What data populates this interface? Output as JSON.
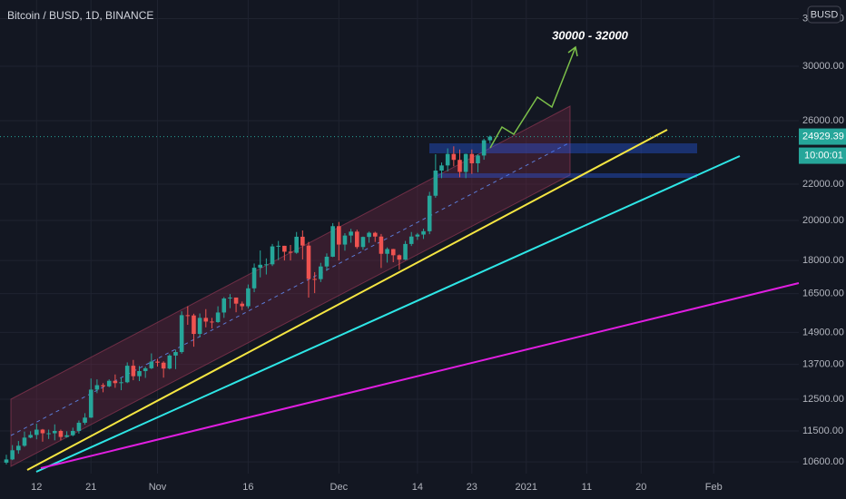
{
  "chart_data": {
    "type": "candlestick",
    "title": "Bitcoin / BUSD, 1D, BINANCE",
    "currency_badge": "BUSD",
    "annotation": "30000 - 32000",
    "last_price": 24929.39,
    "countdown": "10:00:01",
    "log_scale": true,
    "grid": true,
    "up_color": "#26a69a",
    "down_color": "#ef5350",
    "ylim": [
      10280,
      35700
    ],
    "yticks": [
      {
        "value": 10600,
        "label": "10600.00"
      },
      {
        "value": 11500,
        "label": "11500.00"
      },
      {
        "value": 12500,
        "label": "12500.00"
      },
      {
        "value": 13700,
        "label": "13700.00"
      },
      {
        "value": 14900,
        "label": "14900.00"
      },
      {
        "value": 16500,
        "label": "16500.00"
      },
      {
        "value": 18000,
        "label": "18000.00"
      },
      {
        "value": 20000,
        "label": "20000.00"
      },
      {
        "value": 22000,
        "label": "22000.00"
      },
      {
        "value": 26000,
        "label": "26000.00"
      },
      {
        "value": 30000,
        "label": "30000.00"
      },
      {
        "value": 34000,
        "label": "34000.00"
      }
    ],
    "categories": [
      null,
      null,
      null,
      null,
      null,
      "12",
      null,
      null,
      null,
      null,
      null,
      null,
      null,
      null,
      "21",
      null,
      null,
      null,
      null,
      null,
      null,
      null,
      null,
      null,
      null,
      "Nov",
      null,
      null,
      null,
      null,
      null,
      null,
      null,
      null,
      null,
      null,
      null,
      null,
      null,
      null,
      "16",
      null,
      null,
      null,
      null,
      null,
      null,
      null,
      null,
      null,
      null,
      null,
      null,
      null,
      null,
      "Dec",
      null,
      null,
      null,
      null,
      null,
      null,
      null,
      null,
      null,
      null,
      null,
      null,
      "14",
      null,
      null,
      null,
      null,
      null,
      null,
      null,
      null,
      "23",
      null,
      null,
      null,
      null,
      null,
      null,
      null,
      null,
      "2021",
      null,
      null,
      null,
      null,
      null,
      null,
      null,
      null,
      null,
      "11",
      null,
      null,
      null,
      null,
      null,
      null,
      null,
      null,
      "20",
      null,
      null,
      null,
      null,
      null,
      null,
      null,
      null,
      null,
      null,
      null,
      "Feb"
    ],
    "open": [
      10580,
      10670,
      10930,
      11060,
      11300,
      11380,
      11540,
      11430,
      11430,
      11500,
      11320,
      11370,
      11500,
      11750,
      11910,
      12820,
      12970,
      12930,
      13120,
      13040,
      13070,
      13650,
      13280,
      13460,
      13560,
      13800,
      13760,
      13550,
      14020,
      14150,
      15590,
      15580,
      14840,
      15480,
      15330,
      15310,
      15700,
      16290,
      16330,
      16070,
      15960,
      16730,
      17660,
      17800,
      17820,
      18680,
      18710,
      18420,
      18370,
      19160,
      18720,
      17150,
      17140,
      17720,
      18180,
      19700,
      18770,
      19220,
      19420,
      18650,
      19150,
      19360,
      19170,
      18320,
      18550,
      18250,
      18040,
      18800,
      19170,
      19270,
      19440,
      21340,
      22800,
      23110,
      23820,
      23450,
      22720,
      23820,
      23240,
      23720,
      24690,
      null,
      null,
      null,
      null,
      null,
      null,
      null,
      null,
      null,
      null,
      null,
      null,
      null,
      null,
      null,
      null,
      null,
      null,
      null,
      null,
      null,
      null,
      null,
      null,
      null,
      null,
      null,
      null,
      null,
      null,
      null,
      null,
      null,
      null,
      null,
      null,
      null
    ],
    "high": [
      10800,
      11080,
      11200,
      11480,
      11490,
      11720,
      11560,
      11540,
      11700,
      11540,
      11490,
      11600,
      11820,
      12050,
      13200,
      13170,
      13040,
      13170,
      13340,
      13240,
      13770,
      13860,
      13640,
      13620,
      14100,
      13900,
      13810,
      14070,
      14240,
      15750,
      15960,
      15650,
      15660,
      15840,
      15480,
      15960,
      16350,
      16480,
      16330,
      16160,
      16900,
      17860,
      18480,
      18100,
      18800,
      18950,
      18710,
      18750,
      19400,
      19480,
      18900,
      17460,
      17890,
      18340,
      19860,
      19920,
      19340,
      19560,
      19520,
      19170,
      19420,
      19410,
      19300,
      18630,
      18560,
      18290,
      18950,
      19400,
      19350,
      19570,
      21560,
      23800,
      23290,
      24170,
      24300,
      24100,
      23840,
      24100,
      23800,
      24790,
      25000,
      null,
      null,
      null,
      null,
      null,
      null,
      null,
      null,
      null,
      null,
      null,
      null,
      null,
      null,
      null,
      null,
      null,
      null,
      null,
      null,
      null,
      null,
      null,
      null,
      null,
      null,
      null,
      null,
      null,
      null,
      null,
      null,
      null,
      null,
      null,
      null,
      null
    ],
    "low": [
      10530,
      10650,
      10830,
      11030,
      11280,
      11250,
      11180,
      11260,
      11220,
      11220,
      11300,
      11340,
      11420,
      11690,
      11900,
      12700,
      12730,
      12900,
      12880,
      12800,
      13040,
      13140,
      13110,
      13220,
      13530,
      13620,
      13230,
      13520,
      13530,
      14090,
      15200,
      14350,
      14710,
      15100,
      15060,
      15280,
      15480,
      15880,
      15710,
      15800,
      15870,
      16560,
      17220,
      17350,
      17740,
      18020,
      18000,
      18000,
      18320,
      18050,
      16330,
      16520,
      17010,
      17520,
      18160,
      18000,
      18470,
      18860,
      18560,
      18520,
      18860,
      18900,
      17650,
      17900,
      17920,
      17570,
      18020,
      18700,
      19000,
      19050,
      19290,
      21230,
      22350,
      22750,
      23060,
      22400,
      22350,
      22600,
      22700,
      23460,
      24500,
      null,
      null,
      null,
      null,
      null,
      null,
      null,
      null,
      null,
      null,
      null,
      null,
      null,
      null,
      null,
      null,
      null,
      null,
      null,
      null,
      null,
      null,
      null,
      null,
      null,
      null,
      null,
      null,
      null,
      null,
      null,
      null,
      null,
      null,
      null,
      null,
      null
    ],
    "close": [
      10670,
      10930,
      11060,
      11300,
      11380,
      11540,
      11430,
      11430,
      11500,
      11320,
      11370,
      11500,
      11750,
      11910,
      12820,
      12970,
      12930,
      13120,
      13040,
      13070,
      13650,
      13280,
      13460,
      13560,
      13800,
      13760,
      13550,
      14020,
      14150,
      15590,
      15580,
      14840,
      15480,
      15330,
      15310,
      15700,
      16290,
      16330,
      16070,
      15960,
      16730,
      17660,
      17800,
      17820,
      18680,
      18710,
      18420,
      18370,
      19160,
      18720,
      17150,
      17140,
      17720,
      18180,
      19700,
      18770,
      19220,
      19420,
      18650,
      19150,
      19360,
      19170,
      18320,
      18550,
      18250,
      18040,
      18800,
      19170,
      19270,
      19440,
      21340,
      22800,
      23110,
      23820,
      23450,
      22720,
      23820,
      23240,
      23720,
      24690,
      24929.39,
      null,
      null,
      null,
      null,
      null,
      null,
      null,
      null,
      null,
      null,
      null,
      null,
      null,
      null,
      null,
      null,
      null,
      null,
      null,
      null,
      null,
      null,
      null,
      null,
      null,
      null,
      null,
      null,
      null,
      null,
      null,
      null,
      null,
      null,
      null,
      null,
      null
    ]
  }
}
